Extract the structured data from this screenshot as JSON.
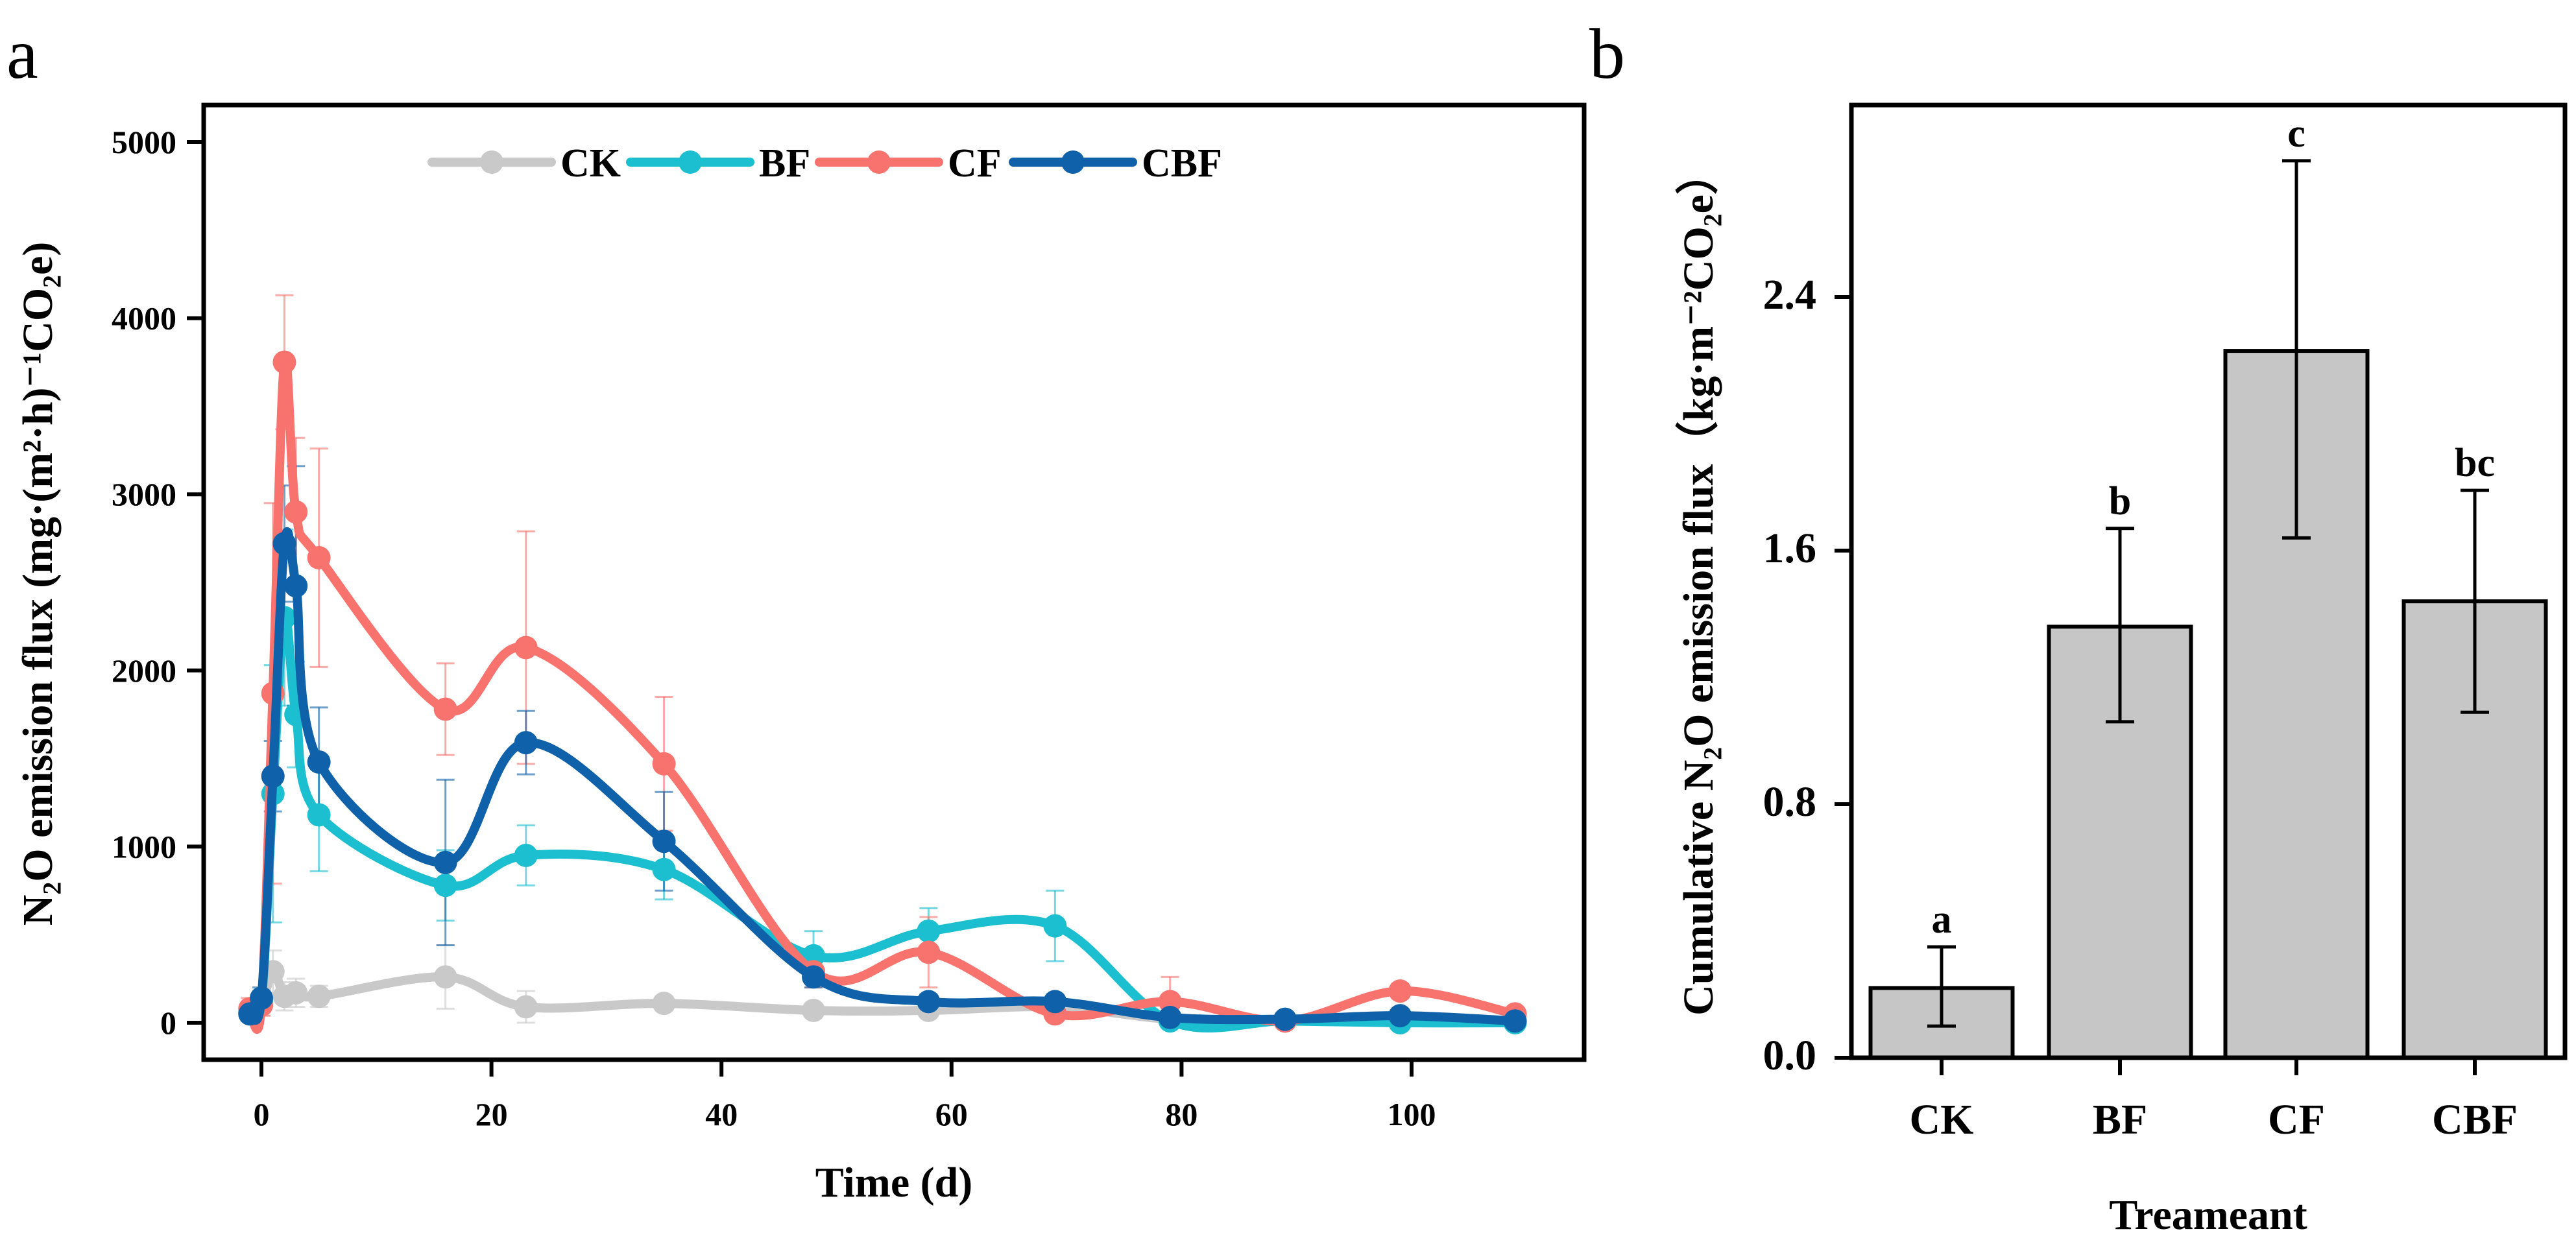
{
  "chart_data": [
    {
      "panel_label": "a",
      "type": "line",
      "title": "",
      "xlabel": "Time (d)",
      "ylabel": "N₂O emission flux (mg·(m²·h)⁻¹CO₂e)",
      "xlim": [
        -3,
        111
      ],
      "ylim": [
        -400,
        5200
      ],
      "xticks": [
        0,
        20,
        40,
        60,
        80,
        100
      ],
      "yticks": [
        0,
        1000,
        2000,
        3000,
        4000,
        5000
      ],
      "legend_position": "top-center",
      "x": [
        -1,
        0,
        1,
        2,
        3,
        5,
        16,
        23,
        35,
        48,
        58,
        69,
        79,
        89,
        99,
        109
      ],
      "series": [
        {
          "name": "CK",
          "color": "#c9c9c9",
          "values": [
            50,
            100,
            290,
            150,
            170,
            150,
            260,
            90,
            110,
            70,
            70,
            90,
            20,
            10,
            20,
            10
          ],
          "errors": [
            40,
            60,
            120,
            80,
            80,
            60,
            180,
            90,
            40,
            30,
            30,
            30,
            20,
            10,
            20,
            10
          ]
        },
        {
          "name": "BF",
          "color": "#1cbfcf",
          "values": [
            60,
            120,
            1300,
            2300,
            1750,
            1180,
            780,
            950,
            870,
            380,
            520,
            550,
            10,
            10,
            0,
            0
          ],
          "errors": [
            50,
            60,
            730,
            500,
            300,
            320,
            200,
            170,
            170,
            140,
            130,
            200,
            20,
            10,
            20,
            10
          ]
        },
        {
          "name": "CF",
          "color": "#f8736e",
          "values": [
            80,
            100,
            1870,
            3750,
            2900,
            2640,
            1780,
            2130,
            1470,
            290,
            400,
            50,
            120,
            10,
            180,
            50
          ],
          "errors": [
            60,
            60,
            1080,
            380,
            420,
            620,
            260,
            660,
            380,
            90,
            200,
            40,
            140,
            20,
            40,
            30
          ]
        },
        {
          "name": "CBF",
          "color": "#0f62a9",
          "values": [
            50,
            140,
            1400,
            2720,
            2480,
            1480,
            910,
            1590,
            1030,
            260,
            120,
            120,
            30,
            20,
            40,
            10
          ],
          "errors": [
            40,
            60,
            200,
            330,
            680,
            310,
            470,
            180,
            280,
            60,
            40,
            40,
            20,
            10,
            20,
            10
          ]
        }
      ]
    },
    {
      "panel_label": "b",
      "type": "bar",
      "title": "",
      "xlabel": "Treameant",
      "ylabel": "Cumulative N₂O emission flux（kg·m⁻²CO₂e）",
      "ylim": [
        0,
        2.95
      ],
      "yticks": [
        "0.0",
        "0.8",
        "1.6",
        "2.4"
      ],
      "categories": [
        "CK",
        "BF",
        "CF",
        "CBF"
      ],
      "values": [
        0.22,
        1.36,
        2.23,
        1.44
      ],
      "error_low": [
        0.1,
        1.06,
        1.64,
        1.09
      ],
      "error_high": [
        0.35,
        1.67,
        2.83,
        1.79
      ],
      "significance": [
        "a",
        "b",
        "c",
        "bc"
      ],
      "bar_color": "#c6c6c6"
    }
  ]
}
